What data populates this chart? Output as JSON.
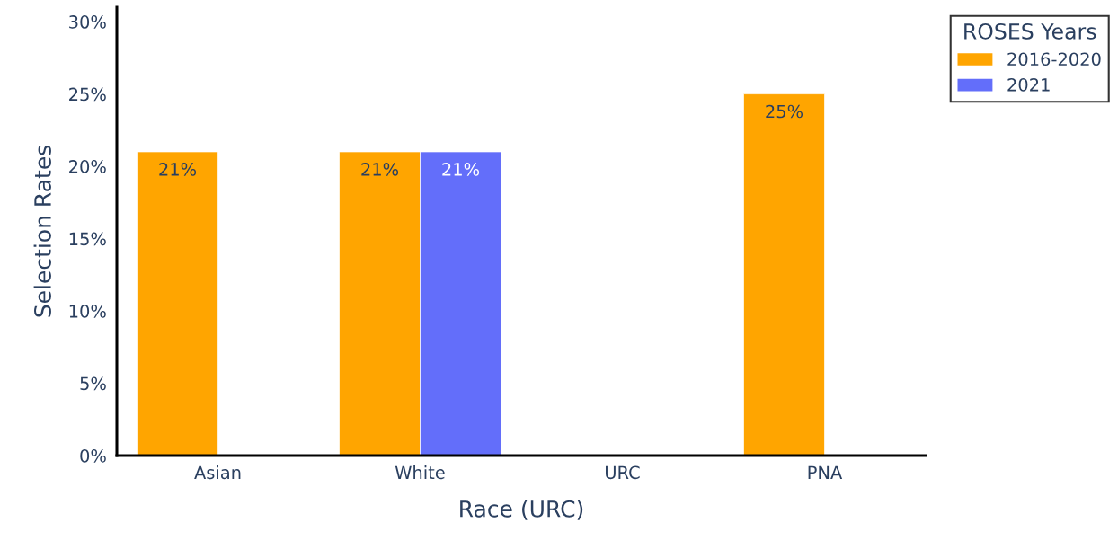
{
  "chart_data": {
    "type": "bar",
    "xlabel": "Race (URC)",
    "ylabel": "Selection Rates",
    "legend_title": "ROSES Years",
    "legend": "top right",
    "categories": [
      "Asian",
      "White",
      "URC",
      "PNA"
    ],
    "series": [
      {
        "name": "2016-2020",
        "color": "#ffa500",
        "values": [
          21,
          21,
          null,
          25
        ],
        "value_labels": [
          "21%",
          "21%",
          null,
          "25%"
        ]
      },
      {
        "name": "2021",
        "color": "#636efa",
        "values": [
          null,
          21,
          null,
          null
        ],
        "value_labels": [
          null,
          "21%",
          null,
          null
        ]
      }
    ],
    "ylim": [
      0,
      31
    ],
    "yticks": [
      {
        "value": 0,
        "label": "0%"
      },
      {
        "value": 5,
        "label": "5%"
      },
      {
        "value": 10,
        "label": "10%"
      },
      {
        "value": 15,
        "label": "15%"
      },
      {
        "value": 20,
        "label": "20%"
      },
      {
        "value": 25,
        "label": "25%"
      },
      {
        "value": 30,
        "label": "30%"
      }
    ],
    "grid": false
  }
}
